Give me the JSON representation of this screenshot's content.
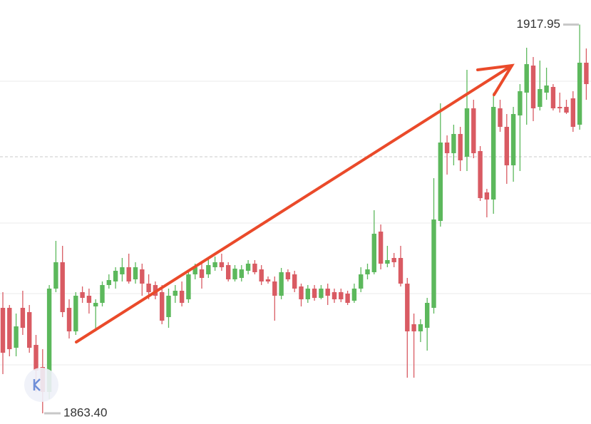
{
  "chart_data": {
    "type": "candlestick",
    "up_color": "#5cb85c",
    "down_color": "#d95b63",
    "ylim": [
      1861.9,
      1921.4
    ],
    "max_label": {
      "value": 1917.95,
      "label": "1917.95"
    },
    "min_label": {
      "value": 1863.4,
      "label": "1863.40"
    },
    "open": [
      1878.2,
      1878.2,
      1872.6,
      1878.2,
      1877.6,
      1873.0,
      1869.9,
      1866.4,
      1880.9,
      1884.6,
      1878.2,
      1874.9,
      1880.4,
      1879.9,
      1878.4,
      1878.9,
      1881.4,
      1881.9,
      1882.9,
      1883.9,
      1882.2,
      1883.6,
      1881.6,
      1881.4,
      1880.4,
      1876.9,
      1879.9,
      1880.6,
      1879.4,
      1882.9,
      1883.6,
      1882.9,
      1883.9,
      1884.6,
      1884.2,
      1882.2,
      1882.4,
      1883.4,
      1884.4,
      1883.6,
      1882.2,
      1881.9,
      1879.9,
      1883.2,
      1882.9,
      1881.2,
      1879.4,
      1880.9,
      1879.6,
      1880.9,
      1880.4,
      1880.4,
      1880.2,
      1879.2,
      1880.9,
      1882.9,
      1883.2,
      1888.9,
      1884.4,
      1885.2,
      1885.2,
      1881.6,
      1875.9,
      1874.9,
      1875.4,
      1878.2,
      1890.4,
      1901.4,
      1899.9,
      1902.6,
      1899.4,
      1906.2,
      1900.2,
      1894.4,
      1893.4,
      1906.2,
      1903.6,
      1898.2,
      1905.2,
      1908.4,
      1912.2,
      1906.4,
      1908.4,
      1909.2,
      1906.4,
      1906.4,
      1907.6,
      1903.9,
      1912.6
    ],
    "high": [
      1880.4,
      1878.6,
      1877.4,
      1880.6,
      1878.6,
      1874.4,
      1872.4,
      1881.4,
      1887.6,
      1886.9,
      1879.4,
      1880.4,
      1881.2,
      1880.9,
      1879.4,
      1881.9,
      1882.9,
      1883.9,
      1885.2,
      1885.8,
      1884.6,
      1884.4,
      1882.9,
      1881.9,
      1881.4,
      1880.9,
      1881.4,
      1881.9,
      1883.6,
      1884.4,
      1884.6,
      1885.2,
      1885.4,
      1885.8,
      1884.6,
      1884.2,
      1884.2,
      1884.9,
      1884.9,
      1884.2,
      1882.6,
      1882.6,
      1883.8,
      1883.6,
      1883.4,
      1881.6,
      1881.4,
      1881.4,
      1881.4,
      1881.6,
      1880.9,
      1880.9,
      1880.6,
      1881.6,
      1883.9,
      1884.4,
      1891.9,
      1889.9,
      1886.9,
      1885.9,
      1886.9,
      1882.4,
      1877.4,
      1876.6,
      1879.6,
      1896.4,
      1906.9,
      1902.4,
      1903.9,
      1903.6,
      1911.6,
      1907.4,
      1900.9,
      1894.9,
      1908.4,
      1907.4,
      1905.4,
      1906.4,
      1909.6,
      1914.7,
      1913.4,
      1912.9,
      1911.9,
      1909.6,
      1908.4,
      1907.4,
      1908.6,
      1917.95,
      1914.6
    ],
    "low": [
      1868.9,
      1871.4,
      1871.4,
      1874.4,
      1871.9,
      1866.4,
      1863.4,
      1865.4,
      1880.4,
      1876.9,
      1873.9,
      1874.4,
      1878.9,
      1877.4,
      1874.9,
      1878.4,
      1880.9,
      1880.9,
      1881.9,
      1881.6,
      1881.6,
      1879.9,
      1879.4,
      1879.4,
      1875.9,
      1875.4,
      1878.9,
      1878.4,
      1878.9,
      1882.2,
      1880.9,
      1882.4,
      1883.4,
      1883.4,
      1881.9,
      1881.9,
      1881.9,
      1882.9,
      1882.9,
      1881.4,
      1881.6,
      1876.4,
      1879.4,
      1881.9,
      1880.4,
      1878.4,
      1878.9,
      1879.2,
      1879.4,
      1878.6,
      1878.9,
      1879.0,
      1878.6,
      1878.9,
      1880.4,
      1882.2,
      1882.9,
      1883.6,
      1883.9,
      1883.9,
      1881.2,
      1868.4,
      1868.4,
      1873.4,
      1872.2,
      1877.4,
      1889.6,
      1896.9,
      1898.2,
      1897.4,
      1897.4,
      1899.2,
      1893.2,
      1890.9,
      1891.4,
      1902.9,
      1895.6,
      1895.9,
      1897.4,
      1903.9,
      1904.4,
      1905.9,
      1907.4,
      1905.9,
      1905.6,
      1905.4,
      1902.9,
      1903.2,
      1907.4
    ],
    "close": [
      1871.9,
      1872.4,
      1875.6,
      1875.4,
      1872.6,
      1869.4,
      1866.4,
      1880.9,
      1884.6,
      1877.6,
      1874.9,
      1879.9,
      1879.6,
      1878.9,
      1878.9,
      1881.4,
      1882.1,
      1883.4,
      1883.9,
      1881.9,
      1883.9,
      1881.6,
      1880.4,
      1879.9,
      1876.4,
      1879.9,
      1880.6,
      1878.9,
      1882.9,
      1883.9,
      1882.4,
      1884.2,
      1884.6,
      1883.9,
      1882.2,
      1883.7,
      1883.6,
      1884.4,
      1883.2,
      1881.9,
      1881.9,
      1879.9,
      1883.2,
      1882.2,
      1880.9,
      1879.4,
      1880.9,
      1879.6,
      1880.9,
      1879.9,
      1879.4,
      1879.4,
      1878.9,
      1880.9,
      1882.9,
      1883.6,
      1888.6,
      1884.4,
      1884.9,
      1884.6,
      1881.6,
      1874.9,
      1874.9,
      1875.9,
      1878.9,
      1890.6,
      1901.4,
      1899.9,
      1902.6,
      1898.9,
      1906.2,
      1899.9,
      1893.6,
      1893.4,
      1906.4,
      1903.6,
      1898.2,
      1905.4,
      1908.6,
      1912.4,
      1906.2,
      1908.9,
      1909.4,
      1906.2,
      1906.2,
      1905.6,
      1903.6,
      1912.6,
      1909.6
    ]
  }
}
